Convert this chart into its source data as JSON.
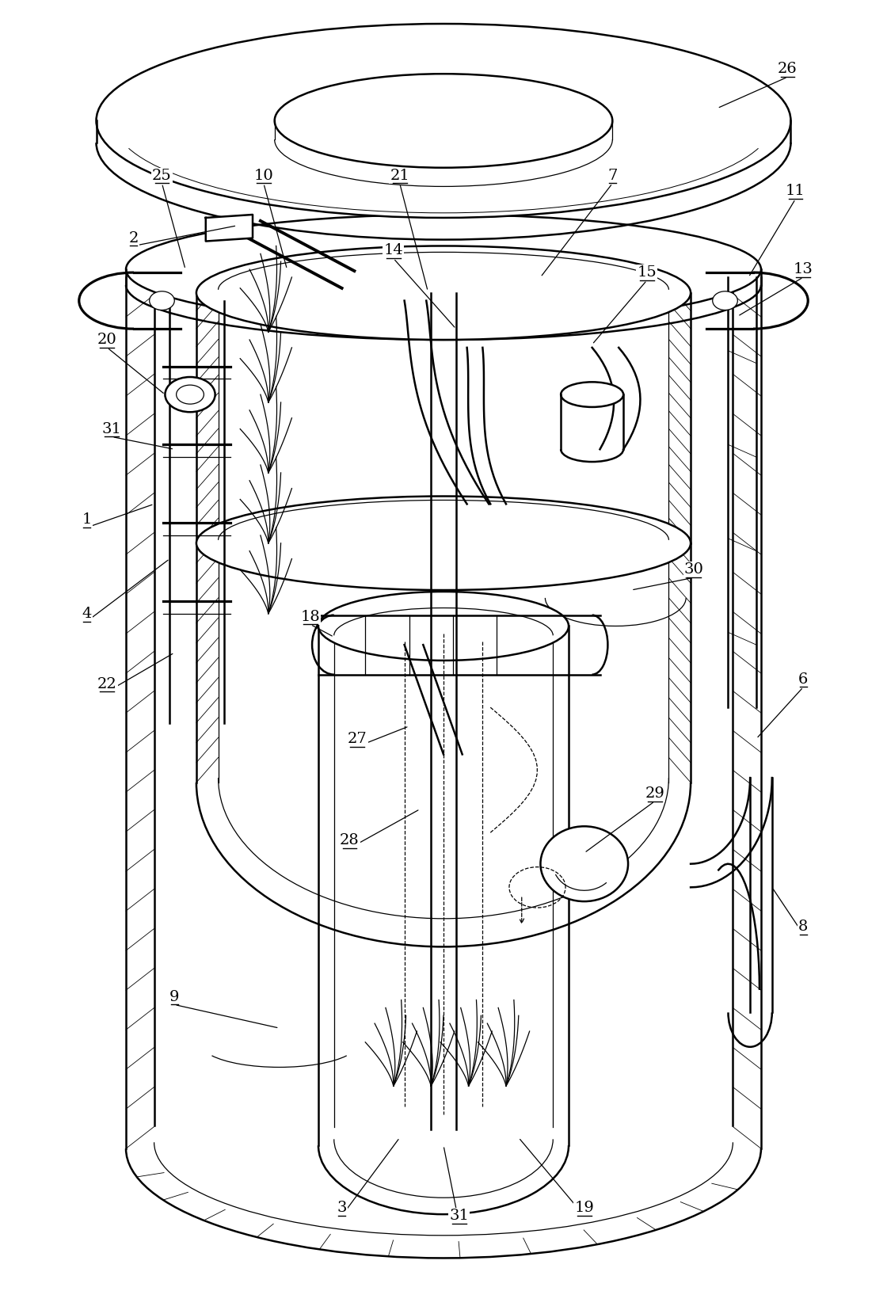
{
  "fig_width": 11.2,
  "fig_height": 16.54,
  "dpi": 100,
  "bg_color": "#ffffff",
  "lc": "#000000",
  "lw_main": 1.8,
  "lw_thin": 0.9,
  "lw_hatch": 0.6,
  "label_fs": 14
}
